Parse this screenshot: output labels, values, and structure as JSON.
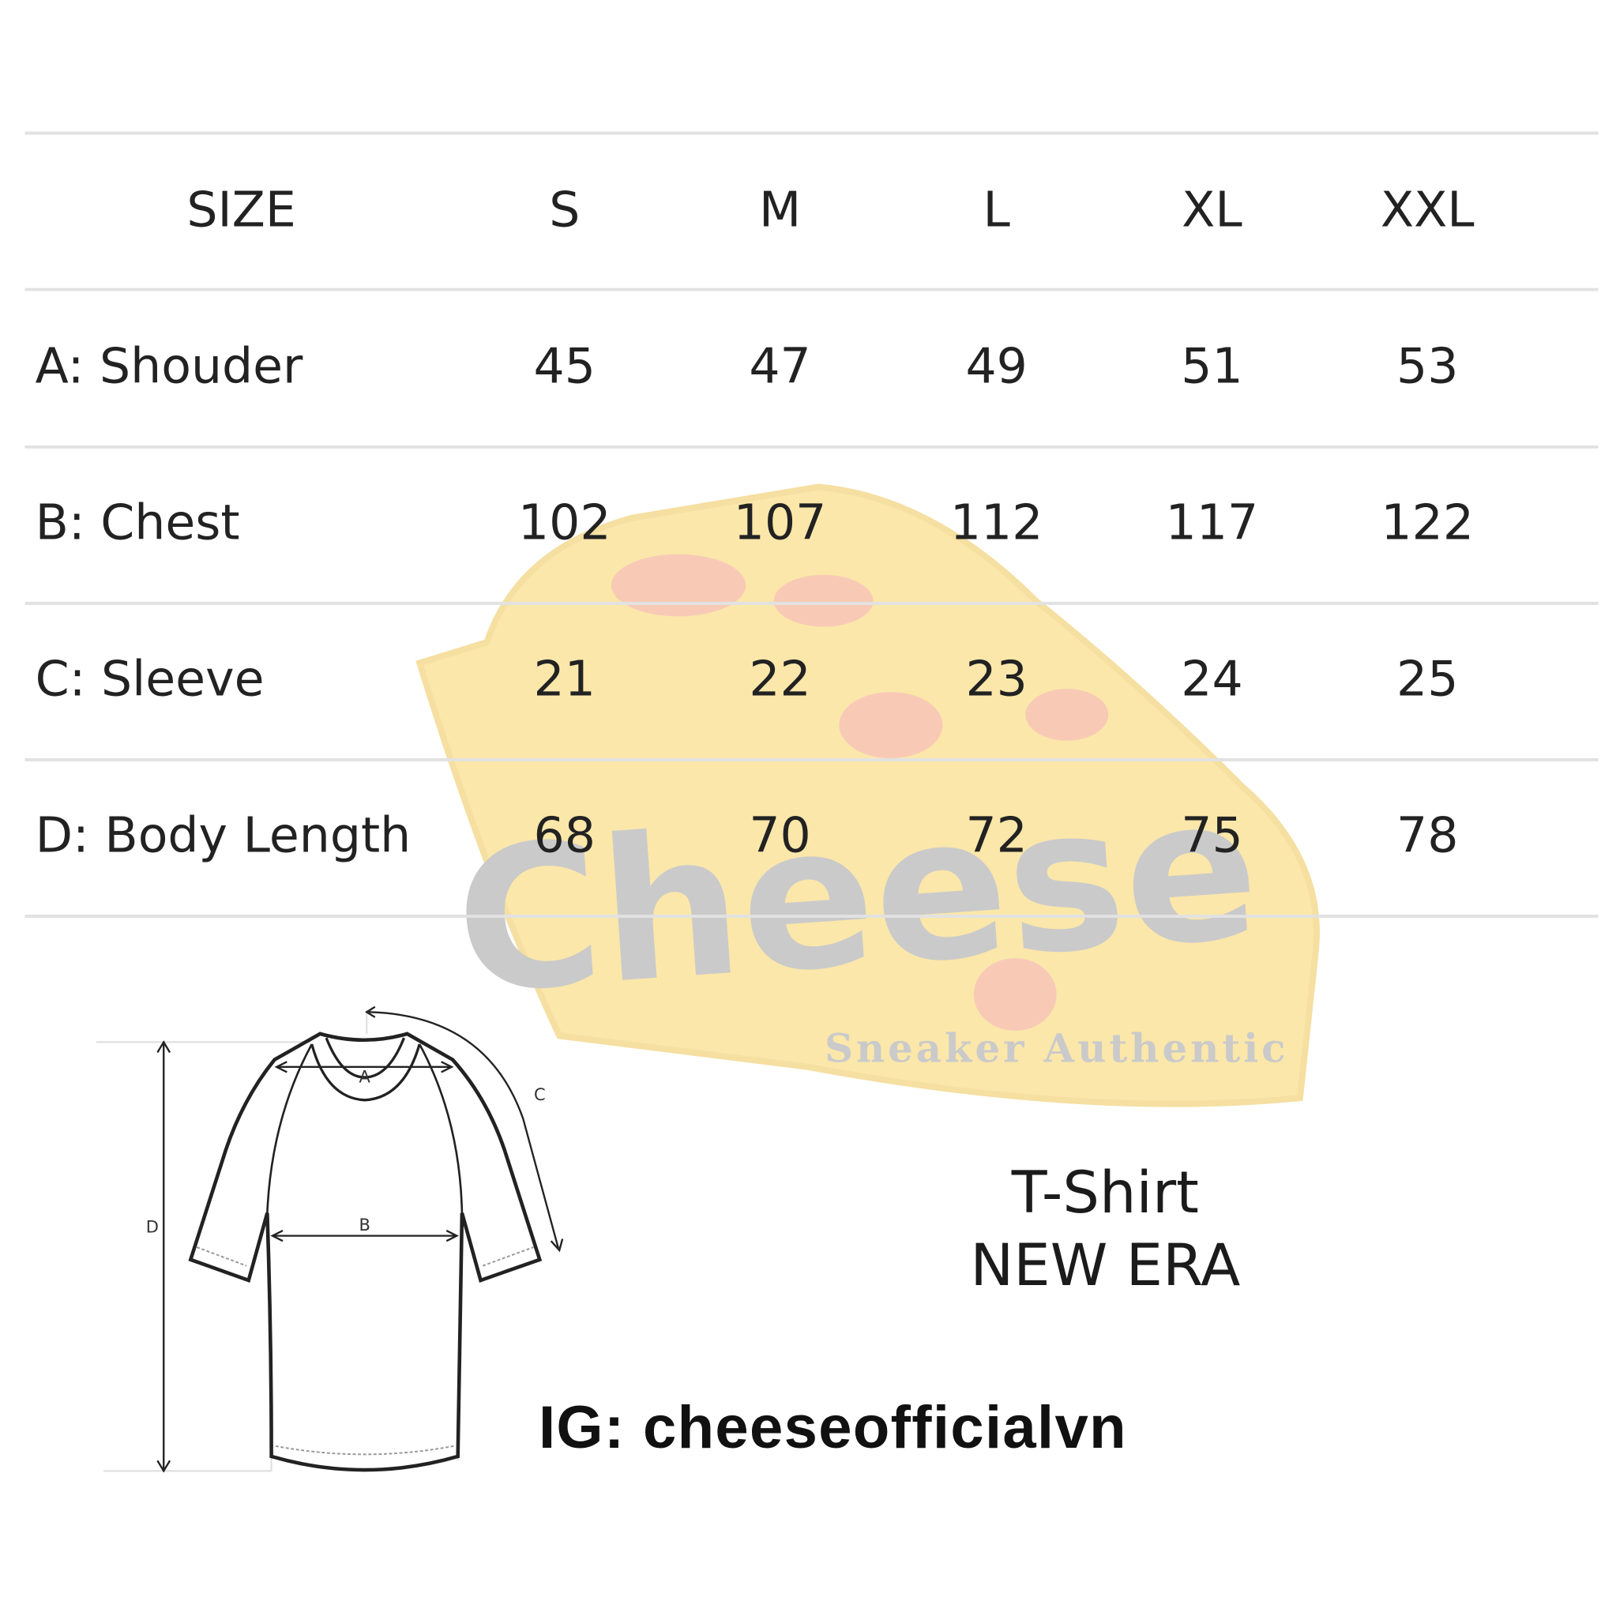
{
  "table": {
    "headers": [
      "SIZE",
      "S",
      "M",
      "L",
      "XL",
      "XXL"
    ],
    "rows": [
      {
        "label": "A: Shouder",
        "values": [
          "45",
          "47",
          "49",
          "51",
          "53"
        ]
      },
      {
        "label": "B: Chest",
        "values": [
          "102",
          "107",
          "112",
          "117",
          "122"
        ]
      },
      {
        "label": "C: Sleeve",
        "values": [
          "21",
          "22",
          "23",
          "24",
          "25"
        ]
      },
      {
        "label": "D: Body Length",
        "values": [
          "68",
          "70",
          "72",
          "75",
          "78"
        ]
      }
    ]
  },
  "diagram": {
    "labels": {
      "a": "A",
      "b": "B",
      "c": "C",
      "d": "D"
    }
  },
  "product": {
    "line1": "T-Shirt",
    "line2": "NEW ERA"
  },
  "instagram": "IG: cheeseofficialvn",
  "watermark": {
    "brand": "Cheese",
    "tagline": "Sneaker Authentic",
    "colors": {
      "cheese": "#f6c944",
      "holes": "#f08a5d",
      "text": "#8a8a8a"
    }
  }
}
